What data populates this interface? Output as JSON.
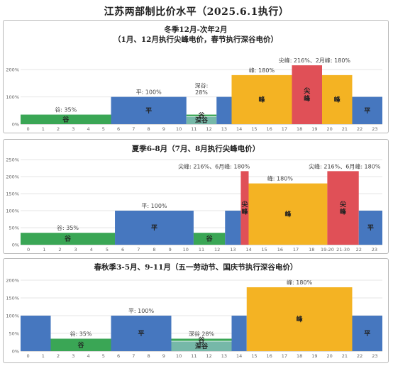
{
  "main_title": "江苏两部制比价水平（2025.6.1执行）",
  "colors": {
    "valley": "#3aa655",
    "deep_valley": "#76b8a8",
    "flat": "#4677bf",
    "peak": "#f4b323",
    "sharp": "#e05057",
    "grid": "#e6e6e6"
  },
  "chart_data": [
    {
      "type": "bar",
      "title_lines": [
        "冬季12月-次年2月",
        "（1月、12月执行尖峰电价，春节执行深谷电价）"
      ],
      "ylim": [
        0,
        250
      ],
      "y_ticks": [
        "0%",
        "100%",
        "200%"
      ],
      "y_tick_values": [
        0,
        100,
        200
      ],
      "x_ticks": [
        "0",
        "1",
        "2",
        "3",
        "4",
        "5",
        "6",
        "7",
        "8",
        "9",
        "10",
        "11",
        "12",
        "13",
        "14",
        "15",
        "16",
        "17",
        "18",
        "19",
        "20",
        "21",
        "22",
        "23"
      ],
      "segments": [
        {
          "start": 0,
          "end": 6,
          "value": 35,
          "label": "谷",
          "kind": "valley"
        },
        {
          "start": 6,
          "end": 11,
          "value": 100,
          "label": "平",
          "kind": "flat"
        },
        {
          "start": 11,
          "end": 13,
          "value": 28,
          "label": "深谷",
          "kind": "deep_valley",
          "upper_value": 35,
          "upper_label": "谷",
          "upper_kind": "valley"
        },
        {
          "start": 13,
          "end": 14,
          "value": 100,
          "label": "",
          "kind": "flat"
        },
        {
          "start": 14,
          "end": 18,
          "value": 180,
          "label": "峰",
          "kind": "peak"
        },
        {
          "start": 18,
          "end": 20,
          "value": 216,
          "label": "尖\n峰",
          "kind": "sharp"
        },
        {
          "start": 20,
          "end": 22,
          "value": 180,
          "label": "峰",
          "kind": "peak"
        },
        {
          "start": 22,
          "end": 24,
          "value": 100,
          "label": "平",
          "kind": "flat"
        }
      ],
      "annotations": [
        {
          "x": 3,
          "y": 35,
          "text": "谷: 35%"
        },
        {
          "x": 8.5,
          "y": 100,
          "text": "平: 100%"
        },
        {
          "x": 12,
          "y": 100,
          "text": "深谷:\n28%"
        },
        {
          "x": 16,
          "y": 180,
          "text": "峰: 180%"
        },
        {
          "x": 19.5,
          "y": 216,
          "text": "尖峰: 216%、2月峰: 180%"
        }
      ]
    },
    {
      "type": "bar",
      "title_lines": [
        "夏季6-8月（7月、8月执行尖峰电价）"
      ],
      "ylim": [
        0,
        250
      ],
      "y_ticks": [
        "0%",
        "50%",
        "100%",
        "150%",
        "200%",
        "250%"
      ],
      "y_tick_values": [
        0,
        50,
        100,
        150,
        200,
        250
      ],
      "x_ticks": [
        "0",
        "1",
        "2",
        "3",
        "4",
        "5",
        "6",
        "7",
        "8",
        "9",
        "10",
        "11",
        "12",
        "13",
        "14",
        "15",
        "16",
        "17",
        "18",
        "19-20",
        "21-30",
        "22",
        "23"
      ],
      "segments": [
        {
          "start": 0,
          "end": 6,
          "value": 35,
          "label": "谷",
          "kind": "valley"
        },
        {
          "start": 6,
          "end": 11,
          "value": 100,
          "label": "平",
          "kind": "flat"
        },
        {
          "start": 11,
          "end": 13,
          "value": 35,
          "label": "谷",
          "kind": "valley"
        },
        {
          "start": 13,
          "end": 14,
          "value": 100,
          "label": "",
          "kind": "flat"
        },
        {
          "start": 14,
          "end": 14.5,
          "value": 216,
          "label": "尖\n峰",
          "kind": "sharp"
        },
        {
          "start": 14.5,
          "end": 19.5,
          "value": 180,
          "label": "峰",
          "kind": "peak"
        },
        {
          "start": 19.5,
          "end": 21.5,
          "value": 216,
          "label": "尖\n峰",
          "kind": "sharp"
        },
        {
          "start": 21.5,
          "end": 23,
          "value": 100,
          "label": "平",
          "kind": "flat"
        }
      ],
      "annotations": [
        {
          "x": 3,
          "y": 35,
          "text": "谷: 35%"
        },
        {
          "x": 8.5,
          "y": 100,
          "text": "平: 100%"
        },
        {
          "x": 16.5,
          "y": 180,
          "text": "峰: 180%"
        },
        {
          "x": 12.3,
          "y": 216,
          "text": "尖峰: 216%、6月峰: 180%"
        },
        {
          "x": 20.6,
          "y": 216,
          "text": "尖峰: 216%、6月峰: 180%"
        }
      ]
    },
    {
      "type": "bar",
      "title_lines": [
        "春秋季3-5月、9-11月（五一劳动节、国庆节执行深谷电价）"
      ],
      "ylim": [
        0,
        200
      ],
      "y_ticks": [
        "0%",
        "50%",
        "100%",
        "150%",
        "200%"
      ],
      "y_tick_values": [
        0,
        50,
        100,
        150,
        200
      ],
      "x_ticks": [
        "0",
        "1",
        "2",
        "3",
        "4",
        "5",
        "6",
        "7",
        "8",
        "9",
        "10",
        "11",
        "12",
        "13",
        "14",
        "15",
        "16",
        "17",
        "18",
        "19",
        "20",
        "21",
        "22",
        "23"
      ],
      "segments": [
        {
          "start": 0,
          "end": 2,
          "value": 100,
          "label": "",
          "kind": "flat"
        },
        {
          "start": 2,
          "end": 6,
          "value": 35,
          "label": "谷",
          "kind": "valley"
        },
        {
          "start": 6,
          "end": 10,
          "value": 100,
          "label": "平",
          "kind": "flat"
        },
        {
          "start": 10,
          "end": 14,
          "value": 28,
          "label": "深谷",
          "kind": "deep_valley",
          "upper_value": 35,
          "upper_label": "谷",
          "upper_kind": "valley"
        },
        {
          "start": 14,
          "end": 15,
          "value": 100,
          "label": "",
          "kind": "flat"
        },
        {
          "start": 15,
          "end": 22,
          "value": 180,
          "label": "峰",
          "kind": "peak"
        },
        {
          "start": 22,
          "end": 24,
          "value": 100,
          "label": "平",
          "kind": "flat"
        }
      ],
      "annotations": [
        {
          "x": 4,
          "y": 35,
          "text": "谷: 35%"
        },
        {
          "x": 8,
          "y": 100,
          "text": "平: 100%"
        },
        {
          "x": 12,
          "y": 35,
          "text": "深谷 28%"
        },
        {
          "x": 18.5,
          "y": 180,
          "text": "峰: 180%"
        }
      ]
    }
  ]
}
